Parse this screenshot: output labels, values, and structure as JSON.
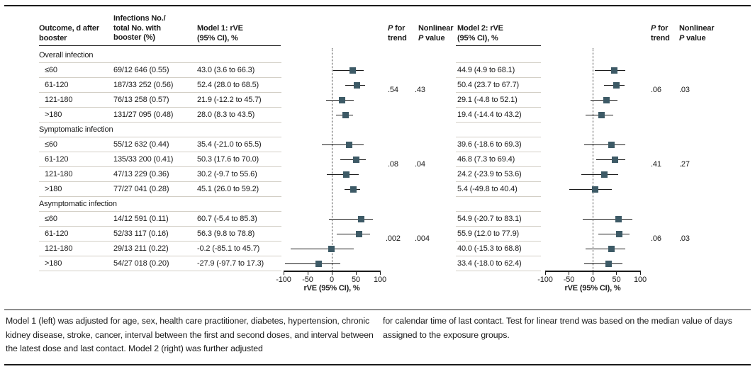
{
  "colors": {
    "marker": "#3d5a66",
    "text": "#1a1a1a",
    "separator": "#d3cfc6",
    "rule": "#1a1a1a",
    "zero_line_dotted": "#444444"
  },
  "header": {
    "outcome": "Outcome, d after\nbooster",
    "infections": "Infections No./\ntotal No. with\nbooster (%)",
    "model1": "Model 1: rVE\n(95% CI), %",
    "model2": "Model 2: rVE\n(95% CI), %",
    "p_italic": "P",
    "p_for_rest": " for",
    "trend_line": "trend",
    "nonlinear_line": "Nonlinear",
    "p_value_rest": " value"
  },
  "axis": {
    "label": "rVE (95% CI), %",
    "ticks": [
      "-100",
      "-50",
      "0",
      "50",
      "100"
    ],
    "tick_values": [
      -100,
      -50,
      0,
      50,
      100
    ],
    "range": [
      -100,
      100
    ]
  },
  "sections": [
    {
      "label": "Overall infection",
      "p_trend_m1": ".54",
      "p_nonlinear_m1": ".43",
      "p_trend_m2": ".06",
      "p_nonlinear_m2": ".03",
      "rows": [
        {
          "label": "≤60",
          "infections": "69/12 646 (0.55)",
          "m1_text": "43.0 (3.6 to 66.3)",
          "m1": {
            "est": 43.0,
            "lo": 3.6,
            "hi": 66.3
          },
          "m2_text": "44.9 (4.9 to 68.1)",
          "m2": {
            "est": 44.9,
            "lo": 4.9,
            "hi": 68.1
          }
        },
        {
          "label": "61-120",
          "infections": "187/33 252 (0.56)",
          "m1_text": "52.4 (28.0 to 68.5)",
          "m1": {
            "est": 52.4,
            "lo": 28.0,
            "hi": 68.5
          },
          "m2_text": "50.4 (23.7 to 67.7)",
          "m2": {
            "est": 50.4,
            "lo": 23.7,
            "hi": 67.7
          }
        },
        {
          "label": "121-180",
          "infections": "76/13 258 (0.57)",
          "m1_text": "21.9 (-12.2 to 45.7)",
          "m1": {
            "est": 21.9,
            "lo": -12.2,
            "hi": 45.7
          },
          "m2_text": "29.1 (-4.8 to 52.1)",
          "m2": {
            "est": 29.1,
            "lo": -4.8,
            "hi": 52.1
          }
        },
        {
          "label": ">180",
          "infections": "131/27 095 (0.48)",
          "m1_text": "28.0 (8.3 to 43.5)",
          "m1": {
            "est": 28.0,
            "lo": 8.3,
            "hi": 43.5
          },
          "m2_text": "19.4 (-14.4 to 43.2)",
          "m2": {
            "est": 19.4,
            "lo": -14.4,
            "hi": 43.2
          }
        }
      ]
    },
    {
      "label": "Symptomatic infection",
      "p_trend_m1": ".08",
      "p_nonlinear_m1": ".04",
      "p_trend_m2": ".41",
      "p_nonlinear_m2": ".27",
      "rows": [
        {
          "label": "≤60",
          "infections": "55/12 632 (0.44)",
          "m1_text": "35.4 (-21.0 to 65.5)",
          "m1": {
            "est": 35.4,
            "lo": -21.0,
            "hi": 65.5
          },
          "m2_text": "39.6 (-18.6 to 69.3)",
          "m2": {
            "est": 39.6,
            "lo": -18.6,
            "hi": 69.3
          }
        },
        {
          "label": "61-120",
          "infections": "135/33 200 (0.41)",
          "m1_text": "50.3 (17.6 to 70.0)",
          "m1": {
            "est": 50.3,
            "lo": 17.6,
            "hi": 70.0
          },
          "m2_text": "46.8 (7.3 to 69.4)",
          "m2": {
            "est": 46.8,
            "lo": 7.3,
            "hi": 69.4
          }
        },
        {
          "label": "121-180",
          "infections": "47/13 229 (0.36)",
          "m1_text": "30.2 (-9.7 to 55.6)",
          "m1": {
            "est": 30.2,
            "lo": -9.7,
            "hi": 55.6
          },
          "m2_text": "24.2 (-23.9 to 53.6)",
          "m2": {
            "est": 24.2,
            "lo": -23.9,
            "hi": 53.6
          }
        },
        {
          "label": ">180",
          "infections": "77/27 041 (0.28)",
          "m1_text": "45.1 (26.0 to 59.2)",
          "m1": {
            "est": 45.1,
            "lo": 26.0,
            "hi": 59.2
          },
          "m2_text": "5.4 (-49.8 to 40.4)",
          "m2": {
            "est": 5.4,
            "lo": -49.8,
            "hi": 40.4
          }
        }
      ]
    },
    {
      "label": "Asymptomatic infection",
      "p_trend_m1": ".002",
      "p_nonlinear_m1": ".004",
      "p_trend_m2": ".06",
      "p_nonlinear_m2": ".03",
      "rows": [
        {
          "label": "≤60",
          "infections": "14/12 591 (0.11)",
          "m1_text": "60.7 (-5.4 to 85.3)",
          "m1": {
            "est": 60.7,
            "lo": -5.4,
            "hi": 85.3
          },
          "m2_text": "54.9 (-20.7 to 83.1)",
          "m2": {
            "est": 54.9,
            "lo": -20.7,
            "hi": 83.1
          }
        },
        {
          "label": "61-120",
          "infections": "52/33 117 (0.16)",
          "m1_text": "56.3 (9.8 to 78.8)",
          "m1": {
            "est": 56.3,
            "lo": 9.8,
            "hi": 78.8
          },
          "m2_text": "55.9 (12.0 to 77.9)",
          "m2": {
            "est": 55.9,
            "lo": 12.0,
            "hi": 77.9
          }
        },
        {
          "label": "121-180",
          "infections": "29/13 211 (0.22)",
          "m1_text": "-0.2 (-85.1 to 45.7)",
          "m1": {
            "est": -0.2,
            "lo": -85.1,
            "hi": 45.7
          },
          "m2_text": "40.0 (-15.3 to 68.8)",
          "m2": {
            "est": 40.0,
            "lo": -15.3,
            "hi": 68.8
          }
        },
        {
          "label": ">180",
          "infections": "54/27 018 (0.20)",
          "m1_text": "-27.9 (-97.7 to 17.3)",
          "m1": {
            "est": -27.9,
            "lo": -97.7,
            "hi": 17.3
          },
          "m2_text": "33.4 (-18.0 to 62.4)",
          "m2": {
            "est": 33.4,
            "lo": -18.0,
            "hi": 62.4
          }
        }
      ]
    }
  ],
  "footnote": {
    "left": "Model 1 (left) was adjusted for age, sex, health care practitioner, diabetes, hypertension, chronic kidney disease, stroke, cancer, interval between the first and second doses, and interval between the latest dose and last contact. Model 2 (right) was further adjusted",
    "right": "for calendar time of last contact. Test for linear trend was based on the median value of days assigned to the exposure groups."
  },
  "chart_data": [
    {
      "type": "forest",
      "model": "Model 1: rVE (95% CI), %",
      "xlabel": "rVE (95% CI), %",
      "xlim": [
        -100,
        100
      ],
      "xticks": [
        -100,
        -50,
        0,
        50,
        100
      ],
      "zero_reference_line": 0,
      "rows": [
        {
          "group": "Overall infection",
          "category": "≤60",
          "est": 43.0,
          "lo": 3.6,
          "hi": 66.3
        },
        {
          "group": "Overall infection",
          "category": "61-120",
          "est": 52.4,
          "lo": 28.0,
          "hi": 68.5
        },
        {
          "group": "Overall infection",
          "category": "121-180",
          "est": 21.9,
          "lo": -12.2,
          "hi": 45.7
        },
        {
          "group": "Overall infection",
          "category": ">180",
          "est": 28.0,
          "lo": 8.3,
          "hi": 43.5
        },
        {
          "group": "Symptomatic infection",
          "category": "≤60",
          "est": 35.4,
          "lo": -21.0,
          "hi": 65.5
        },
        {
          "group": "Symptomatic infection",
          "category": "61-120",
          "est": 50.3,
          "lo": 17.6,
          "hi": 70.0
        },
        {
          "group": "Symptomatic infection",
          "category": "121-180",
          "est": 30.2,
          "lo": -9.7,
          "hi": 55.6
        },
        {
          "group": "Symptomatic infection",
          "category": ">180",
          "est": 45.1,
          "lo": 26.0,
          "hi": 59.2
        },
        {
          "group": "Asymptomatic infection",
          "category": "≤60",
          "est": 60.7,
          "lo": -5.4,
          "hi": 85.3
        },
        {
          "group": "Asymptomatic infection",
          "category": "61-120",
          "est": 56.3,
          "lo": 9.8,
          "hi": 78.8
        },
        {
          "group": "Asymptomatic infection",
          "category": "121-180",
          "est": -0.2,
          "lo": -85.1,
          "hi": 45.7
        },
        {
          "group": "Asymptomatic infection",
          "category": ">180",
          "est": -27.9,
          "lo": -97.7,
          "hi": 17.3
        }
      ],
      "p_for_trend": {
        "Overall infection": ".54",
        "Symptomatic infection": ".08",
        "Asymptomatic infection": ".002"
      },
      "nonlinear_p": {
        "Overall infection": ".43",
        "Symptomatic infection": ".04",
        "Asymptomatic infection": ".004"
      }
    },
    {
      "type": "forest",
      "model": "Model 2: rVE (95% CI), %",
      "xlabel": "rVE (95% CI), %",
      "xlim": [
        -100,
        100
      ],
      "xticks": [
        -100,
        -50,
        0,
        50,
        100
      ],
      "zero_reference_line": 0,
      "rows": [
        {
          "group": "Overall infection",
          "category": "≤60",
          "est": 44.9,
          "lo": 4.9,
          "hi": 68.1
        },
        {
          "group": "Overall infection",
          "category": "61-120",
          "est": 50.4,
          "lo": 23.7,
          "hi": 67.7
        },
        {
          "group": "Overall infection",
          "category": "121-180",
          "est": 29.1,
          "lo": -4.8,
          "hi": 52.1
        },
        {
          "group": "Overall infection",
          "category": ">180",
          "est": 19.4,
          "lo": -14.4,
          "hi": 43.2
        },
        {
          "group": "Symptomatic infection",
          "category": "≤60",
          "est": 39.6,
          "lo": -18.6,
          "hi": 69.3
        },
        {
          "group": "Symptomatic infection",
          "category": "61-120",
          "est": 46.8,
          "lo": 7.3,
          "hi": 69.4
        },
        {
          "group": "Symptomatic infection",
          "category": "121-180",
          "est": 24.2,
          "lo": -23.9,
          "hi": 53.6
        },
        {
          "group": "Symptomatic infection",
          "category": ">180",
          "est": 5.4,
          "lo": -49.8,
          "hi": 40.4
        },
        {
          "group": "Asymptomatic infection",
          "category": "≤60",
          "est": 54.9,
          "lo": -20.7,
          "hi": 83.1
        },
        {
          "group": "Asymptomatic infection",
          "category": "61-120",
          "est": 55.9,
          "lo": 12.0,
          "hi": 77.9
        },
        {
          "group": "Asymptomatic infection",
          "category": "121-180",
          "est": 40.0,
          "lo": -15.3,
          "hi": 68.8
        },
        {
          "group": "Asymptomatic infection",
          "category": ">180",
          "est": 33.4,
          "lo": -18.0,
          "hi": 62.4
        }
      ],
      "p_for_trend": {
        "Overall infection": ".06",
        "Symptomatic infection": ".41",
        "Asymptomatic infection": ".06"
      },
      "nonlinear_p": {
        "Overall infection": ".03",
        "Symptomatic infection": ".27",
        "Asymptomatic infection": ".03"
      }
    }
  ]
}
